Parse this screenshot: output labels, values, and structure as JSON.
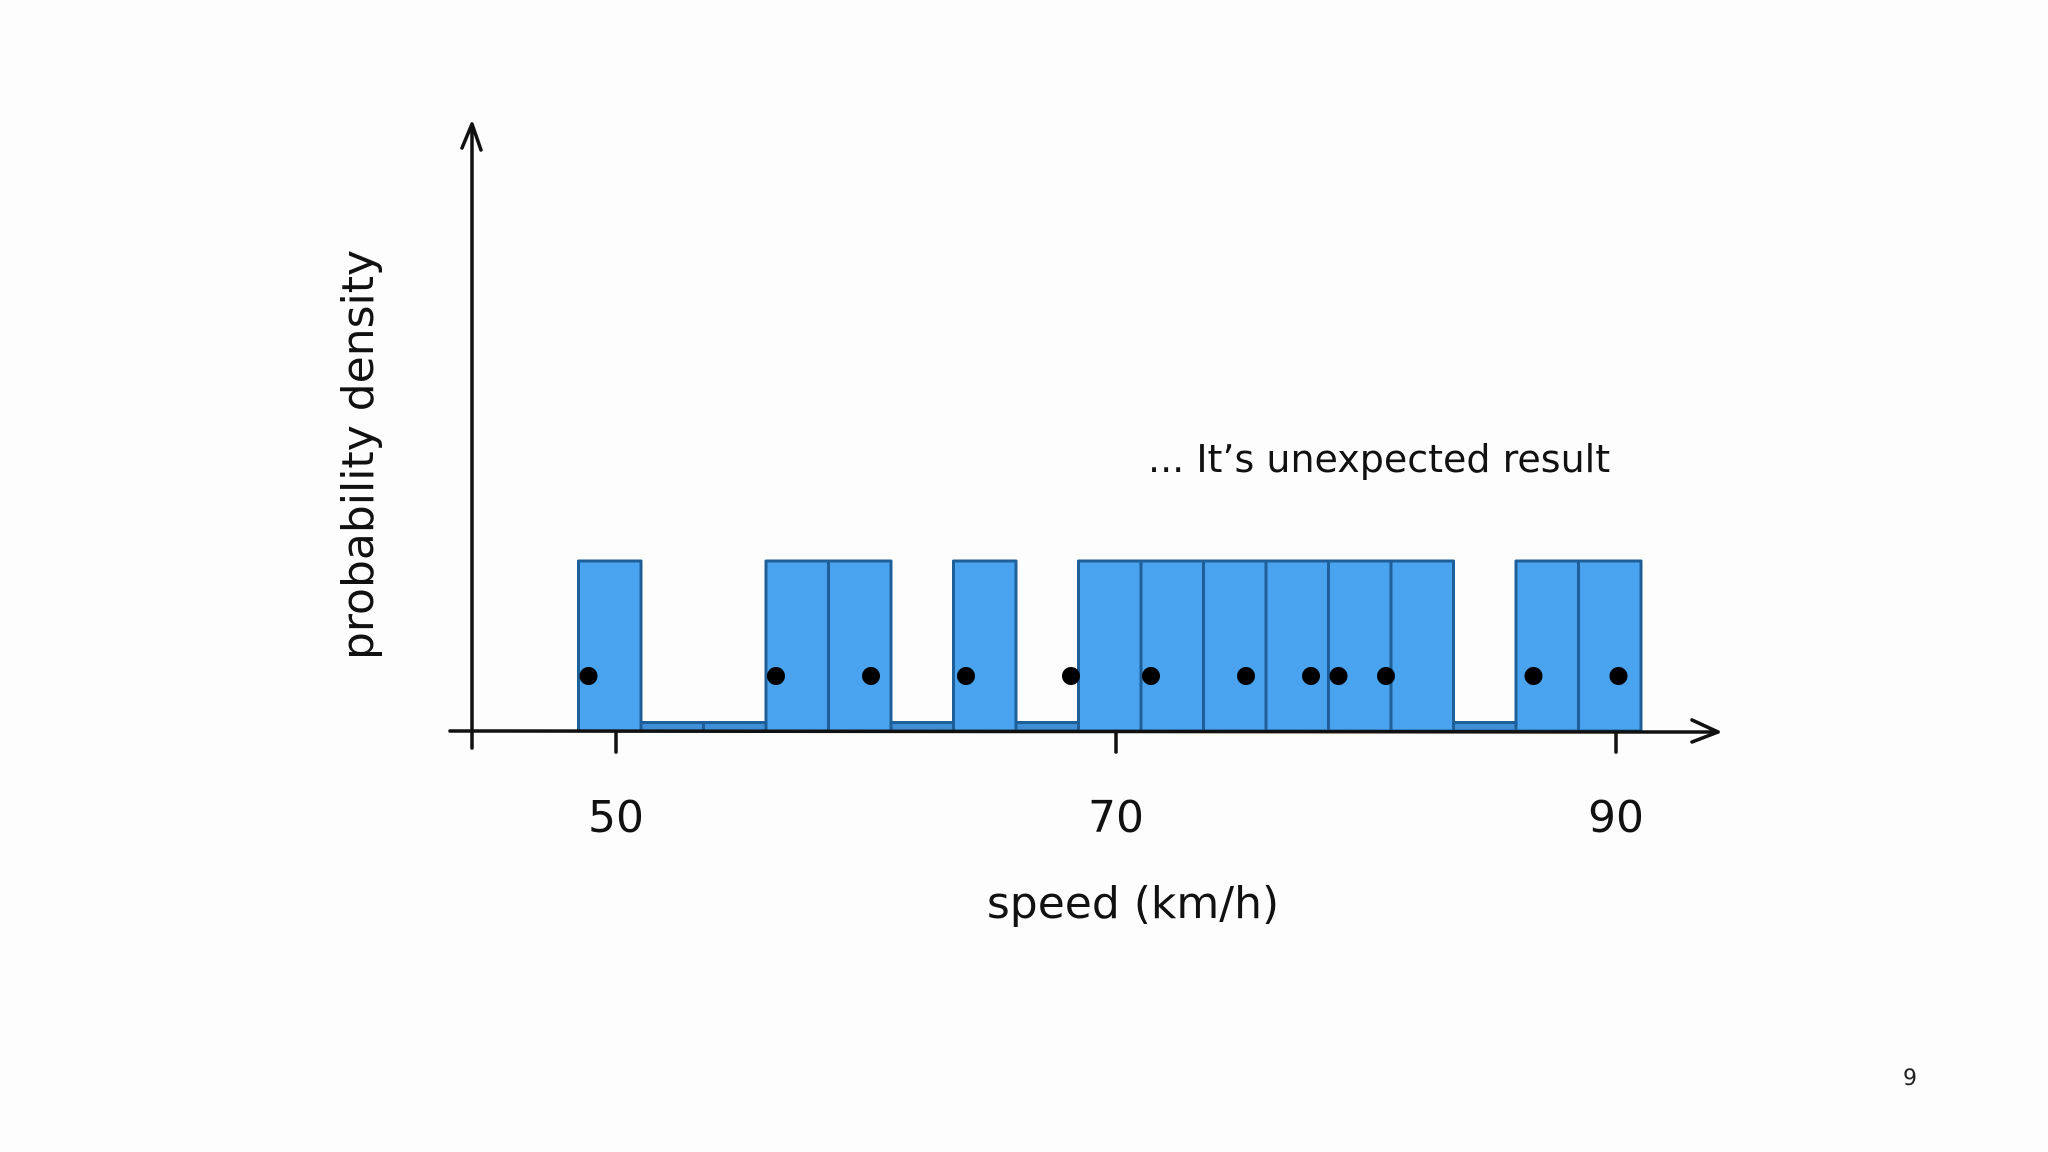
{
  "chart_data": {
    "type": "bar",
    "subtype": "histogram",
    "xlabel": "speed (km/h)",
    "ylabel": "probability density",
    "x_ticks": [
      50,
      70,
      90
    ],
    "xlim": [
      44,
      94
    ],
    "bin_width": 2.5,
    "bins": [
      {
        "start": 48.5,
        "end": 51.0,
        "density": 1.0
      },
      {
        "start": 51.0,
        "end": 53.5,
        "density": 0.05
      },
      {
        "start": 53.5,
        "end": 56.0,
        "density": 0.05
      },
      {
        "start": 56.0,
        "end": 58.5,
        "density": 1.0
      },
      {
        "start": 58.5,
        "end": 61.0,
        "density": 1.0
      },
      {
        "start": 61.0,
        "end": 63.5,
        "density": 0.05
      },
      {
        "start": 63.5,
        "end": 66.0,
        "density": 1.0
      },
      {
        "start": 66.0,
        "end": 68.5,
        "density": 0.05
      },
      {
        "start": 68.5,
        "end": 71.0,
        "density": 1.0
      },
      {
        "start": 71.0,
        "end": 73.5,
        "density": 1.0
      },
      {
        "start": 73.5,
        "end": 76.0,
        "density": 1.0
      },
      {
        "start": 76.0,
        "end": 78.5,
        "density": 1.0
      },
      {
        "start": 78.5,
        "end": 81.0,
        "density": 1.0
      },
      {
        "start": 81.0,
        "end": 83.5,
        "density": 1.0
      },
      {
        "start": 83.5,
        "end": 86.0,
        "density": 0.05
      },
      {
        "start": 86.0,
        "end": 88.5,
        "density": 1.0
      },
      {
        "start": 88.5,
        "end": 91.0,
        "density": 1.0
      }
    ],
    "observations": [
      48.9,
      56.4,
      60.2,
      64.0,
      68.2,
      71.4,
      75.2,
      77.8,
      78.9,
      80.8,
      86.7,
      90.1
    ],
    "ylim": [
      0,
      4.5
    ],
    "annotation": "... It’s unexpected result",
    "colors": {
      "bar_fill": "#4aa3ef",
      "bar_stroke": "#1f5f99",
      "low_bar_fill": "#3f8ed6",
      "points": "#000000",
      "axes": "#111111"
    }
  },
  "slide_number": "9"
}
